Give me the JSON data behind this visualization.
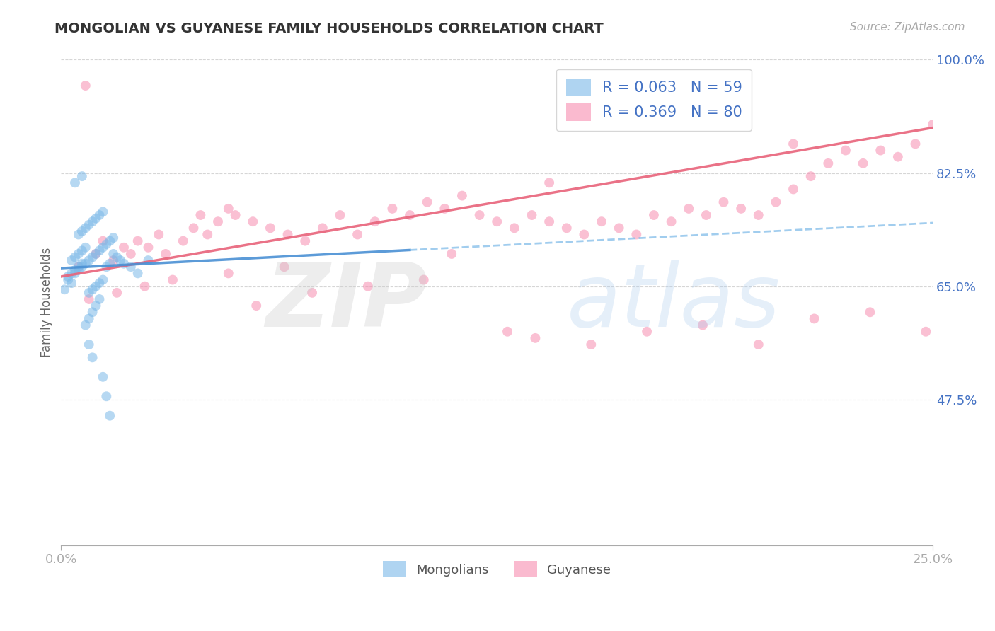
{
  "title": "MONGOLIAN VS GUYANESE FAMILY HOUSEHOLDS CORRELATION CHART",
  "source": "Source: ZipAtlas.com",
  "ylabel": "Family Households",
  "xmin": 0.0,
  "xmax": 0.25,
  "ymin": 0.25,
  "ymax": 1.0,
  "yticks": [
    0.475,
    0.65,
    0.825,
    1.0
  ],
  "ytick_labels": [
    "47.5%",
    "65.0%",
    "82.5%",
    "100.0%"
  ],
  "xticks": [
    0.0,
    0.25
  ],
  "xtick_labels": [
    "0.0%",
    "25.0%"
  ],
  "mongolian_color": "#7ab8e8",
  "guyanese_color": "#f78db0",
  "mongolian_R": 0.063,
  "mongolian_N": 59,
  "guyanese_R": 0.369,
  "guyanese_N": 80,
  "background_color": "#ffffff",
  "grid_color": "#cccccc",
  "title_color": "#333333",
  "axis_label_color": "#4472c4",
  "mongolian_scatter_x": [
    0.001,
    0.002,
    0.003,
    0.004,
    0.005,
    0.006,
    0.007,
    0.008,
    0.009,
    0.01,
    0.011,
    0.012,
    0.013,
    0.014,
    0.015,
    0.005,
    0.006,
    0.007,
    0.008,
    0.009,
    0.01,
    0.011,
    0.012,
    0.013,
    0.014,
    0.003,
    0.004,
    0.005,
    0.006,
    0.007,
    0.008,
    0.009,
    0.01,
    0.011,
    0.012,
    0.002,
    0.003,
    0.004,
    0.005,
    0.006,
    0.007,
    0.008,
    0.009,
    0.01,
    0.011,
    0.015,
    0.016,
    0.017,
    0.018,
    0.02,
    0.022,
    0.025,
    0.012,
    0.013,
    0.014,
    0.008,
    0.009,
    0.006,
    0.004
  ],
  "mongolian_scatter_y": [
    0.645,
    0.66,
    0.655,
    0.67,
    0.675,
    0.68,
    0.685,
    0.69,
    0.695,
    0.7,
    0.705,
    0.71,
    0.715,
    0.72,
    0.725,
    0.73,
    0.735,
    0.74,
    0.745,
    0.75,
    0.755,
    0.76,
    0.765,
    0.68,
    0.685,
    0.69,
    0.695,
    0.7,
    0.705,
    0.71,
    0.64,
    0.645,
    0.65,
    0.655,
    0.66,
    0.665,
    0.67,
    0.675,
    0.68,
    0.685,
    0.59,
    0.6,
    0.61,
    0.62,
    0.63,
    0.7,
    0.695,
    0.69,
    0.685,
    0.68,
    0.67,
    0.69,
    0.51,
    0.48,
    0.45,
    0.56,
    0.54,
    0.82,
    0.81
  ],
  "guyanese_scatter_x": [
    0.005,
    0.01,
    0.012,
    0.015,
    0.018,
    0.02,
    0.022,
    0.025,
    0.028,
    0.03,
    0.035,
    0.038,
    0.04,
    0.042,
    0.045,
    0.048,
    0.05,
    0.055,
    0.06,
    0.065,
    0.07,
    0.075,
    0.08,
    0.085,
    0.09,
    0.095,
    0.1,
    0.105,
    0.11,
    0.115,
    0.12,
    0.125,
    0.13,
    0.135,
    0.14,
    0.145,
    0.15,
    0.155,
    0.16,
    0.165,
    0.17,
    0.175,
    0.18,
    0.185,
    0.19,
    0.195,
    0.2,
    0.205,
    0.21,
    0.215,
    0.22,
    0.225,
    0.23,
    0.235,
    0.24,
    0.245,
    0.25,
    0.008,
    0.016,
    0.024,
    0.032,
    0.048,
    0.056,
    0.064,
    0.072,
    0.088,
    0.104,
    0.112,
    0.128,
    0.136,
    0.152,
    0.168,
    0.184,
    0.2,
    0.216,
    0.232,
    0.248,
    0.007,
    0.21,
    0.14
  ],
  "guyanese_scatter_y": [
    0.68,
    0.7,
    0.72,
    0.69,
    0.71,
    0.7,
    0.72,
    0.71,
    0.73,
    0.7,
    0.72,
    0.74,
    0.76,
    0.73,
    0.75,
    0.77,
    0.76,
    0.75,
    0.74,
    0.73,
    0.72,
    0.74,
    0.76,
    0.73,
    0.75,
    0.77,
    0.76,
    0.78,
    0.77,
    0.79,
    0.76,
    0.75,
    0.74,
    0.76,
    0.75,
    0.74,
    0.73,
    0.75,
    0.74,
    0.73,
    0.76,
    0.75,
    0.77,
    0.76,
    0.78,
    0.77,
    0.76,
    0.78,
    0.8,
    0.82,
    0.84,
    0.86,
    0.84,
    0.86,
    0.85,
    0.87,
    0.9,
    0.63,
    0.64,
    0.65,
    0.66,
    0.67,
    0.62,
    0.68,
    0.64,
    0.65,
    0.66,
    0.7,
    0.58,
    0.57,
    0.56,
    0.58,
    0.59,
    0.56,
    0.6,
    0.61,
    0.58,
    0.96,
    0.87,
    0.81
  ],
  "mong_trend_x": [
    0.0,
    0.25
  ],
  "mong_trend_y": [
    0.678,
    0.748
  ],
  "guy_trend_x": [
    0.0,
    0.25
  ],
  "guy_trend_y": [
    0.665,
    0.895
  ]
}
